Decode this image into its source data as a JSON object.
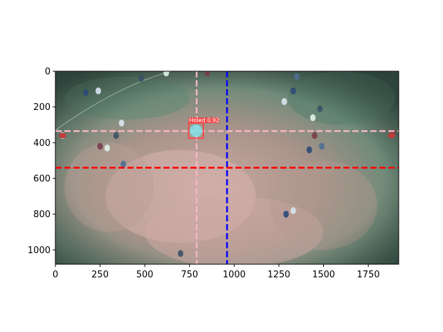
{
  "chart_data": {
    "type": "image",
    "title": "",
    "xlabel": "",
    "ylabel": "",
    "xlim": [
      0,
      1920
    ],
    "ylim": [
      1080,
      0
    ],
    "x_ticks": [
      0,
      250,
      500,
      750,
      1000,
      1250,
      1500,
      1750
    ],
    "y_ticks": [
      0,
      200,
      400,
      600,
      800,
      1000
    ],
    "grid": false,
    "lines": [
      {
        "orientation": "vertical",
        "value": 790,
        "color": "#f4b6c2",
        "style": "dashed"
      },
      {
        "orientation": "vertical",
        "value": 960,
        "color": "#0000ff",
        "style": "dashed"
      },
      {
        "orientation": "horizontal",
        "value": 335,
        "color": "#f4b6c2",
        "style": "dashed"
      },
      {
        "orientation": "horizontal",
        "value": 540,
        "color": "#ff0000",
        "style": "dashed"
      }
    ],
    "detections": [
      {
        "label": "Holed 0.92",
        "x0": 745,
        "y0": 290,
        "x1": 828,
        "y1": 375,
        "color": "#ff3b3b"
      }
    ]
  }
}
